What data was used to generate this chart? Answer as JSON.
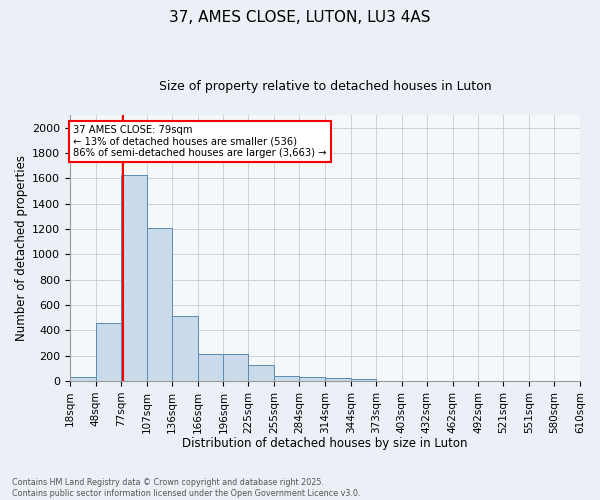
{
  "title": "37, AMES CLOSE, LUTON, LU3 4AS",
  "subtitle": "Size of property relative to detached houses in Luton",
  "xlabel": "Distribution of detached houses by size in Luton",
  "ylabel": "Number of detached properties",
  "bin_edges": [
    18,
    48,
    77,
    107,
    136,
    166,
    196,
    225,
    255,
    284,
    314,
    344,
    373,
    403,
    432,
    462,
    492,
    521,
    551,
    580,
    610
  ],
  "bar_heights": [
    35,
    460,
    1630,
    1210,
    510,
    215,
    215,
    125,
    42,
    30,
    20,
    15,
    0,
    0,
    0,
    0,
    0,
    0,
    0,
    0
  ],
  "bar_color": "#c9daea",
  "bar_edge_color": "#5a8ab0",
  "red_line_x": 79,
  "annotation_line1": "37 AMES CLOSE: 79sqm",
  "annotation_line2": "← 13% of detached houses are smaller (536)",
  "annotation_line3": "86% of semi-detached houses are larger (3,663) →",
  "annotation_box_color": "white",
  "annotation_box_edge_color": "red",
  "ylim": [
    0,
    2100
  ],
  "yticks": [
    0,
    200,
    400,
    600,
    800,
    1000,
    1200,
    1400,
    1600,
    1800,
    2000
  ],
  "footer_line1": "Contains HM Land Registry data © Crown copyright and database right 2025.",
  "footer_line2": "Contains public sector information licensed under the Open Government Licence v3.0.",
  "bg_color": "#eaf0f6",
  "plot_bg_color": "#f5f8fb",
  "grid_color": "#c5cdd5",
  "title_fontsize": 11,
  "subtitle_fontsize": 9,
  "tick_fontsize": 7.5,
  "ylabel_fontsize": 8.5,
  "xlabel_fontsize": 8.5
}
